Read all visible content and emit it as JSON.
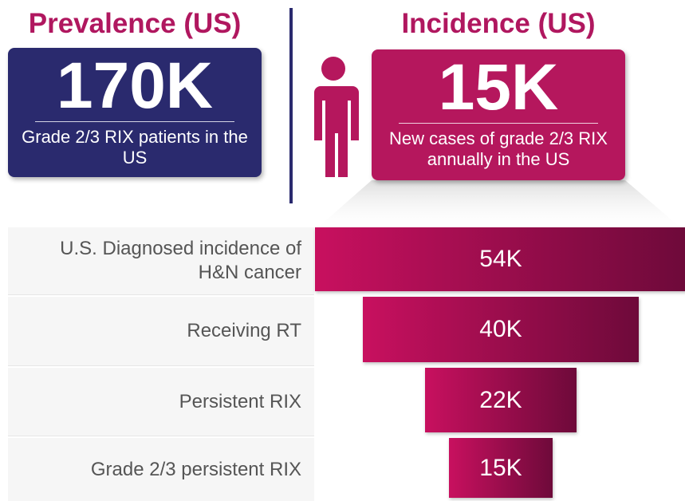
{
  "panels": [
    {
      "title": "Prevalence (US)",
      "value": "170K",
      "caption": "Grade 2/3 RIX patients in the US"
    },
    {
      "title": "Incidence (US)",
      "value": "15K",
      "caption": "New cases of grade 2/3 RIX annually in the US"
    }
  ],
  "chart_data": {
    "type": "funnel",
    "categories": [
      "U.S. Diagnosed incidence of H&N cancer",
      "Receiving RT",
      "Persistent RIX",
      "Grade 2/3 persistent RIX"
    ],
    "values": [
      54,
      40,
      22,
      15
    ],
    "value_labels": [
      "54K",
      "40K",
      "22K",
      "15K"
    ],
    "color": [
      "#c8105f",
      "#6e0a3a"
    ]
  }
}
